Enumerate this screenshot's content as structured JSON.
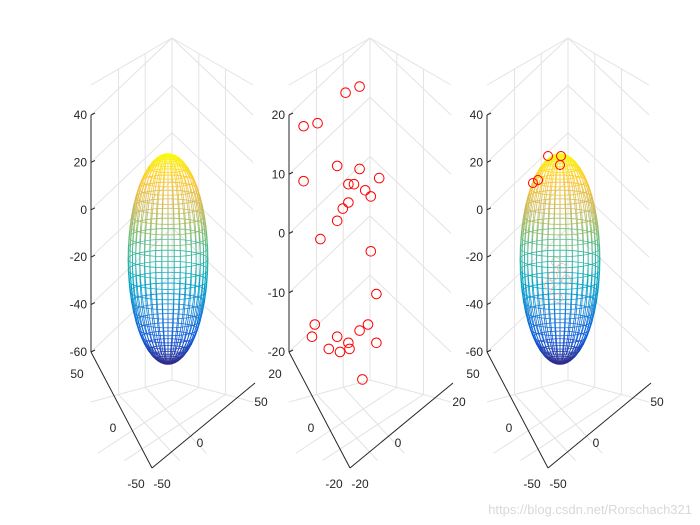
{
  "chart_data": [
    {
      "type": "mesh3d",
      "title": "",
      "description": "ellipsoid wireframe mesh, parula colormap",
      "zticks": [
        "40",
        "20",
        "0",
        "-20",
        "-40",
        "-60"
      ],
      "xticks": [
        "50",
        "0",
        "-50"
      ],
      "yticks": [
        "-50",
        "0",
        "50"
      ],
      "zlim": [
        -60,
        40
      ],
      "colormap": [
        "#352a87",
        "#0f5cdd",
        "#1481d6",
        "#06a4ca",
        "#2eb7a4",
        "#87bf77",
        "#d1bb59",
        "#fec832",
        "#f9fb0e"
      ],
      "ellipsoid": {
        "center": [
          0,
          0,
          -20
        ],
        "radii": [
          25,
          25,
          45
        ]
      }
    },
    {
      "type": "scatter3d",
      "title": "",
      "marker": "o",
      "marker_color": "#ff0000",
      "zticks": [
        "20",
        "10",
        "0",
        "-10",
        "-20"
      ],
      "xticks": [
        "20",
        "0",
        "-20"
      ],
      "yticks": [
        "-20",
        "0",
        "20"
      ],
      "zlim": [
        -20,
        20
      ],
      "points_screen_est": [
        [
          -1.5,
          23
        ],
        [
          1,
          24
        ],
        [
          -9,
          17.5
        ],
        [
          -6.5,
          18
        ],
        [
          -9,
          8.5
        ],
        [
          -3,
          11
        ],
        [
          1,
          10.5
        ],
        [
          -1,
          8
        ],
        [
          0,
          8
        ],
        [
          4.5,
          9
        ],
        [
          2,
          7
        ],
        [
          3,
          6
        ],
        [
          -1,
          5
        ],
        [
          -2,
          4
        ],
        [
          -3,
          2
        ],
        [
          -6,
          -1
        ],
        [
          3,
          -3
        ],
        [
          4,
          -10
        ],
        [
          -7,
          -15
        ],
        [
          -7.5,
          -17
        ],
        [
          -3,
          -17
        ],
        [
          -4.5,
          -19
        ],
        [
          -2.5,
          -19.5
        ],
        [
          -1,
          -18
        ],
        [
          -0.8,
          -19
        ],
        [
          1,
          -16
        ],
        [
          2.5,
          -15
        ],
        [
          4,
          -18
        ],
        [
          1.5,
          -24
        ]
      ]
    },
    {
      "type": "mesh3d+scatter3d",
      "title": "",
      "description": "ellipsoid fit overlaid with data points",
      "zticks": [
        "40",
        "20",
        "0",
        "-20",
        "-40",
        "-60"
      ],
      "xticks": [
        "50",
        "0",
        "-50"
      ],
      "yticks": [
        "-50",
        "0",
        "50"
      ],
      "zlim": [
        -60,
        40
      ],
      "marker_color": "#ff0000"
    }
  ],
  "watermark": "https://blog.csdn.net/Rorschach321"
}
